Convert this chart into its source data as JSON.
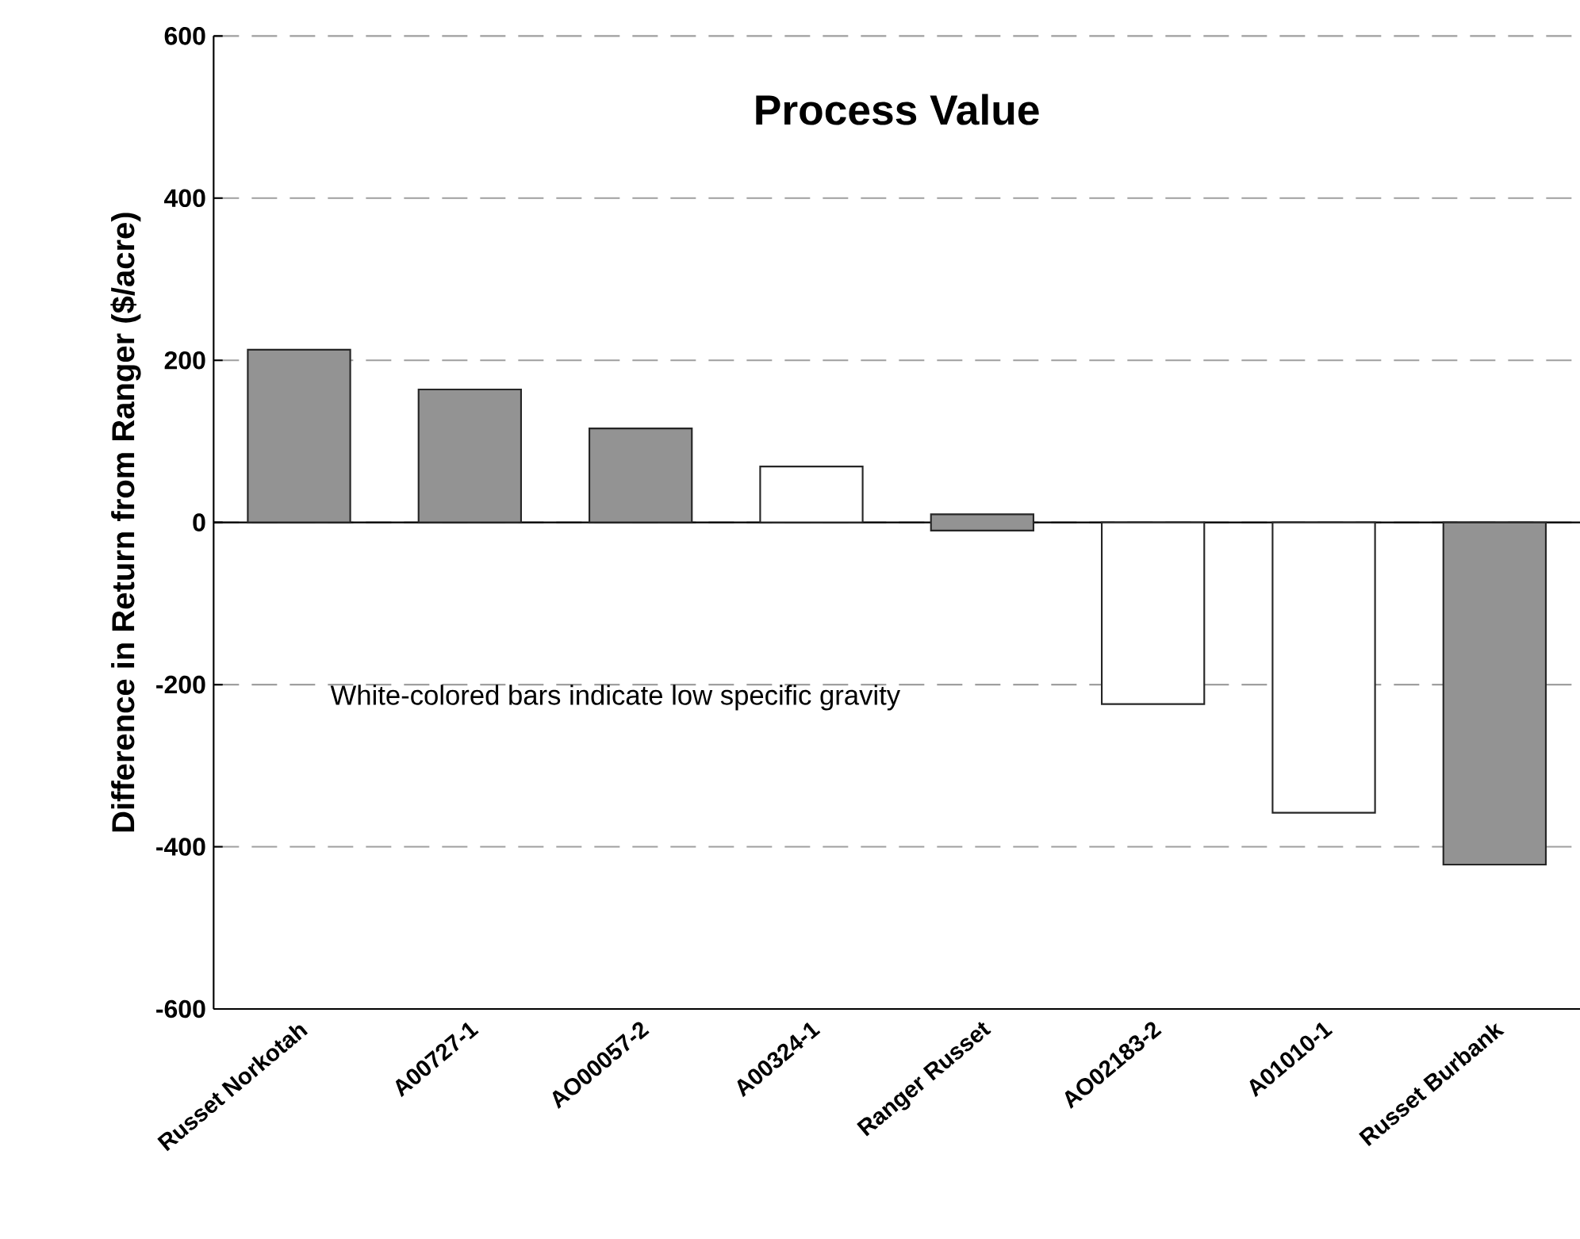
{
  "chart_data": {
    "type": "bar",
    "title": "Process Value",
    "ylabel": "Difference in Return from Ranger ($/acre)",
    "categories": [
      "Russet Norkotah",
      "A00727-1",
      "AO00057-2",
      "A00324-1",
      "Ranger Russet",
      "AO02183-2",
      "A01010-1",
      "Russet Burbank"
    ],
    "values": [
      213,
      164,
      116,
      69,
      20,
      -224,
      -358,
      -422
    ],
    "base": [
      0,
      0,
      0,
      0,
      -10,
      0,
      0,
      0
    ],
    "colors": [
      "#939393",
      "#939393",
      "#939393",
      "#ffffff",
      "#939393",
      "#ffffff",
      "#ffffff",
      "#939393"
    ],
    "ylim": [
      -600,
      600
    ],
    "yticks": [
      -600,
      -400,
      -200,
      0,
      200,
      400,
      600
    ],
    "ref_lines": [
      {
        "axis": "y",
        "value": 0,
        "color": "#000000",
        "line_style": "solid"
      }
    ],
    "annotations": [
      "White-colored bars indicate low specific gravity"
    ],
    "grid": "y"
  }
}
